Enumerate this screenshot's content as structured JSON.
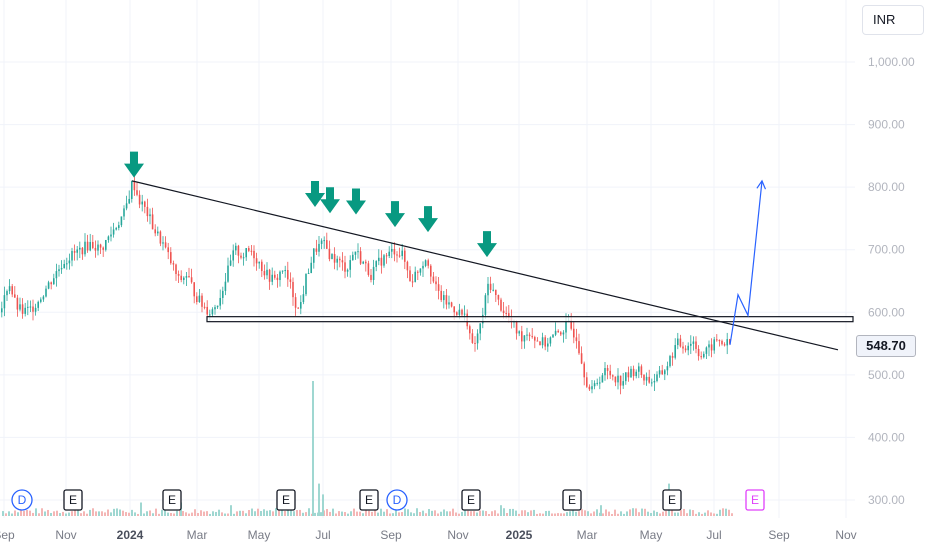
{
  "currency_selector": {
    "label": "INR"
  },
  "chart_data": {
    "type": "candlestick",
    "y_axis": {
      "ticks": [
        "1,000.00",
        "900.00",
        "800.00",
        "700.00",
        "600.00",
        "500.00",
        "400.00",
        "300.00"
      ],
      "tick_values": [
        1000,
        900,
        800,
        700,
        600,
        500,
        400,
        300
      ],
      "range": [
        285,
        1040
      ]
    },
    "x_axis": {
      "ticks": [
        "Sep",
        "Nov",
        "2024",
        "Mar",
        "May",
        "Jul",
        "Sep",
        "Nov",
        "2025",
        "Mar",
        "May",
        "Jul",
        "Sep",
        "Nov"
      ],
      "bold_ticks": [
        "2024",
        "2025"
      ]
    },
    "last_price": {
      "value": 548.7,
      "label": "548.70"
    },
    "price_path": [
      [
        0,
        600
      ],
      [
        8,
        650
      ],
      [
        15,
        610
      ],
      [
        22,
        600
      ],
      [
        30,
        605
      ],
      [
        38,
        620
      ],
      [
        46,
        640
      ],
      [
        54,
        660
      ],
      [
        62,
        680
      ],
      [
        70,
        690
      ],
      [
        80,
        700
      ],
      [
        90,
        710
      ],
      [
        100,
        700
      ],
      [
        108,
        720
      ],
      [
        116,
        740
      ],
      [
        124,
        760
      ],
      [
        132,
        810
      ],
      [
        138,
        780
      ],
      [
        146,
        760
      ],
      [
        154,
        730
      ],
      [
        162,
        710
      ],
      [
        170,
        680
      ],
      [
        178,
        650
      ],
      [
        186,
        660
      ],
      [
        194,
        630
      ],
      [
        202,
        610
      ],
      [
        210,
        600
      ],
      [
        218,
        620
      ],
      [
        226,
        660
      ],
      [
        234,
        700
      ],
      [
        242,
        690
      ],
      [
        250,
        700
      ],
      [
        258,
        680
      ],
      [
        266,
        660
      ],
      [
        274,
        650
      ],
      [
        282,
        670
      ],
      [
        290,
        640
      ],
      [
        298,
        600
      ],
      [
        306,
        660
      ],
      [
        314,
        700
      ],
      [
        322,
        710
      ],
      [
        330,
        690
      ],
      [
        338,
        680
      ],
      [
        346,
        670
      ],
      [
        354,
        700
      ],
      [
        362,
        680
      ],
      [
        370,
        660
      ],
      [
        378,
        680
      ],
      [
        386,
        690
      ],
      [
        394,
        700
      ],
      [
        402,
        690
      ],
      [
        410,
        650
      ],
      [
        418,
        670
      ],
      [
        426,
        690
      ],
      [
        434,
        640
      ],
      [
        442,
        620
      ],
      [
        450,
        610
      ],
      [
        458,
        600
      ],
      [
        466,
        590
      ],
      [
        472,
        540
      ],
      [
        480,
        580
      ],
      [
        488,
        650
      ],
      [
        496,
        620
      ],
      [
        504,
        600
      ],
      [
        512,
        580
      ],
      [
        520,
        560
      ],
      [
        528,
        570
      ],
      [
        536,
        555
      ],
      [
        544,
        550
      ],
      [
        552,
        560
      ],
      [
        560,
        570
      ],
      [
        568,
        580
      ],
      [
        576,
        560
      ],
      [
        584,
        500
      ],
      [
        590,
        470
      ],
      [
        596,
        490
      ],
      [
        604,
        505
      ],
      [
        612,
        500
      ],
      [
        620,
        490
      ],
      [
        628,
        500
      ],
      [
        636,
        510
      ],
      [
        644,
        495
      ],
      [
        652,
        490
      ],
      [
        660,
        500
      ],
      [
        668,
        520
      ],
      [
        676,
        550
      ],
      [
        684,
        545
      ],
      [
        692,
        555
      ],
      [
        700,
        530
      ],
      [
        708,
        540
      ],
      [
        716,
        555
      ],
      [
        724,
        550
      ],
      [
        730,
        548.7
      ]
    ],
    "volume_bars": [
      [
        312,
        50
      ],
      [
        318,
        12
      ],
      [
        322,
        8
      ],
      [
        668,
        12
      ],
      [
        180,
        5
      ],
      [
        290,
        6
      ],
      [
        230,
        4
      ],
      [
        140,
        5
      ],
      [
        500,
        4
      ],
      [
        600,
        4
      ]
    ],
    "lines": [
      {
        "name": "Descending trendline",
        "color": "#131722",
        "points": [
          [
            132,
            810
          ],
          [
            838,
            540
          ]
        ]
      },
      {
        "name": "Projected breakout path",
        "color": "#2962ff",
        "points": [
          [
            730,
            548
          ],
          [
            738,
            628
          ],
          [
            748,
            595
          ],
          [
            762,
            810
          ]
        ]
      }
    ],
    "support_zone": {
      "x_start": 207,
      "x_end": 853,
      "y_low": 585,
      "y_high": 593
    },
    "markers": [
      {
        "name": "down-arrow-1",
        "x": 134,
        "y": 812
      },
      {
        "name": "down-arrow-2",
        "x": 315,
        "y": 765
      },
      {
        "name": "down-arrow-3",
        "x": 330,
        "y": 755
      },
      {
        "name": "down-arrow-4",
        "x": 356,
        "y": 753
      },
      {
        "name": "down-arrow-5",
        "x": 395,
        "y": 733
      },
      {
        "name": "down-arrow-6",
        "x": 428,
        "y": 725
      },
      {
        "name": "down-arrow-7",
        "x": 487,
        "y": 685
      }
    ],
    "events": [
      {
        "letter": "D",
        "x": 22,
        "style": "dividend"
      },
      {
        "letter": "E",
        "x": 73,
        "style": "earnings"
      },
      {
        "letter": "E",
        "x": 172,
        "style": "earnings"
      },
      {
        "letter": "E",
        "x": 286,
        "style": "earnings"
      },
      {
        "letter": "E",
        "x": 369,
        "style": "earnings"
      },
      {
        "letter": "D",
        "x": 397,
        "style": "dividend"
      },
      {
        "letter": "E",
        "x": 471,
        "style": "earnings"
      },
      {
        "letter": "E",
        "x": 572,
        "style": "earnings"
      },
      {
        "letter": "E",
        "x": 672,
        "style": "earnings"
      },
      {
        "letter": "E",
        "x": 755,
        "style": "upcoming"
      }
    ],
    "colors": {
      "up": "#26a69a",
      "down": "#ef5350",
      "marker": "#089981",
      "dividend": "#2962ff",
      "earnings": "#131722",
      "upcoming": "#e040fb"
    }
  }
}
